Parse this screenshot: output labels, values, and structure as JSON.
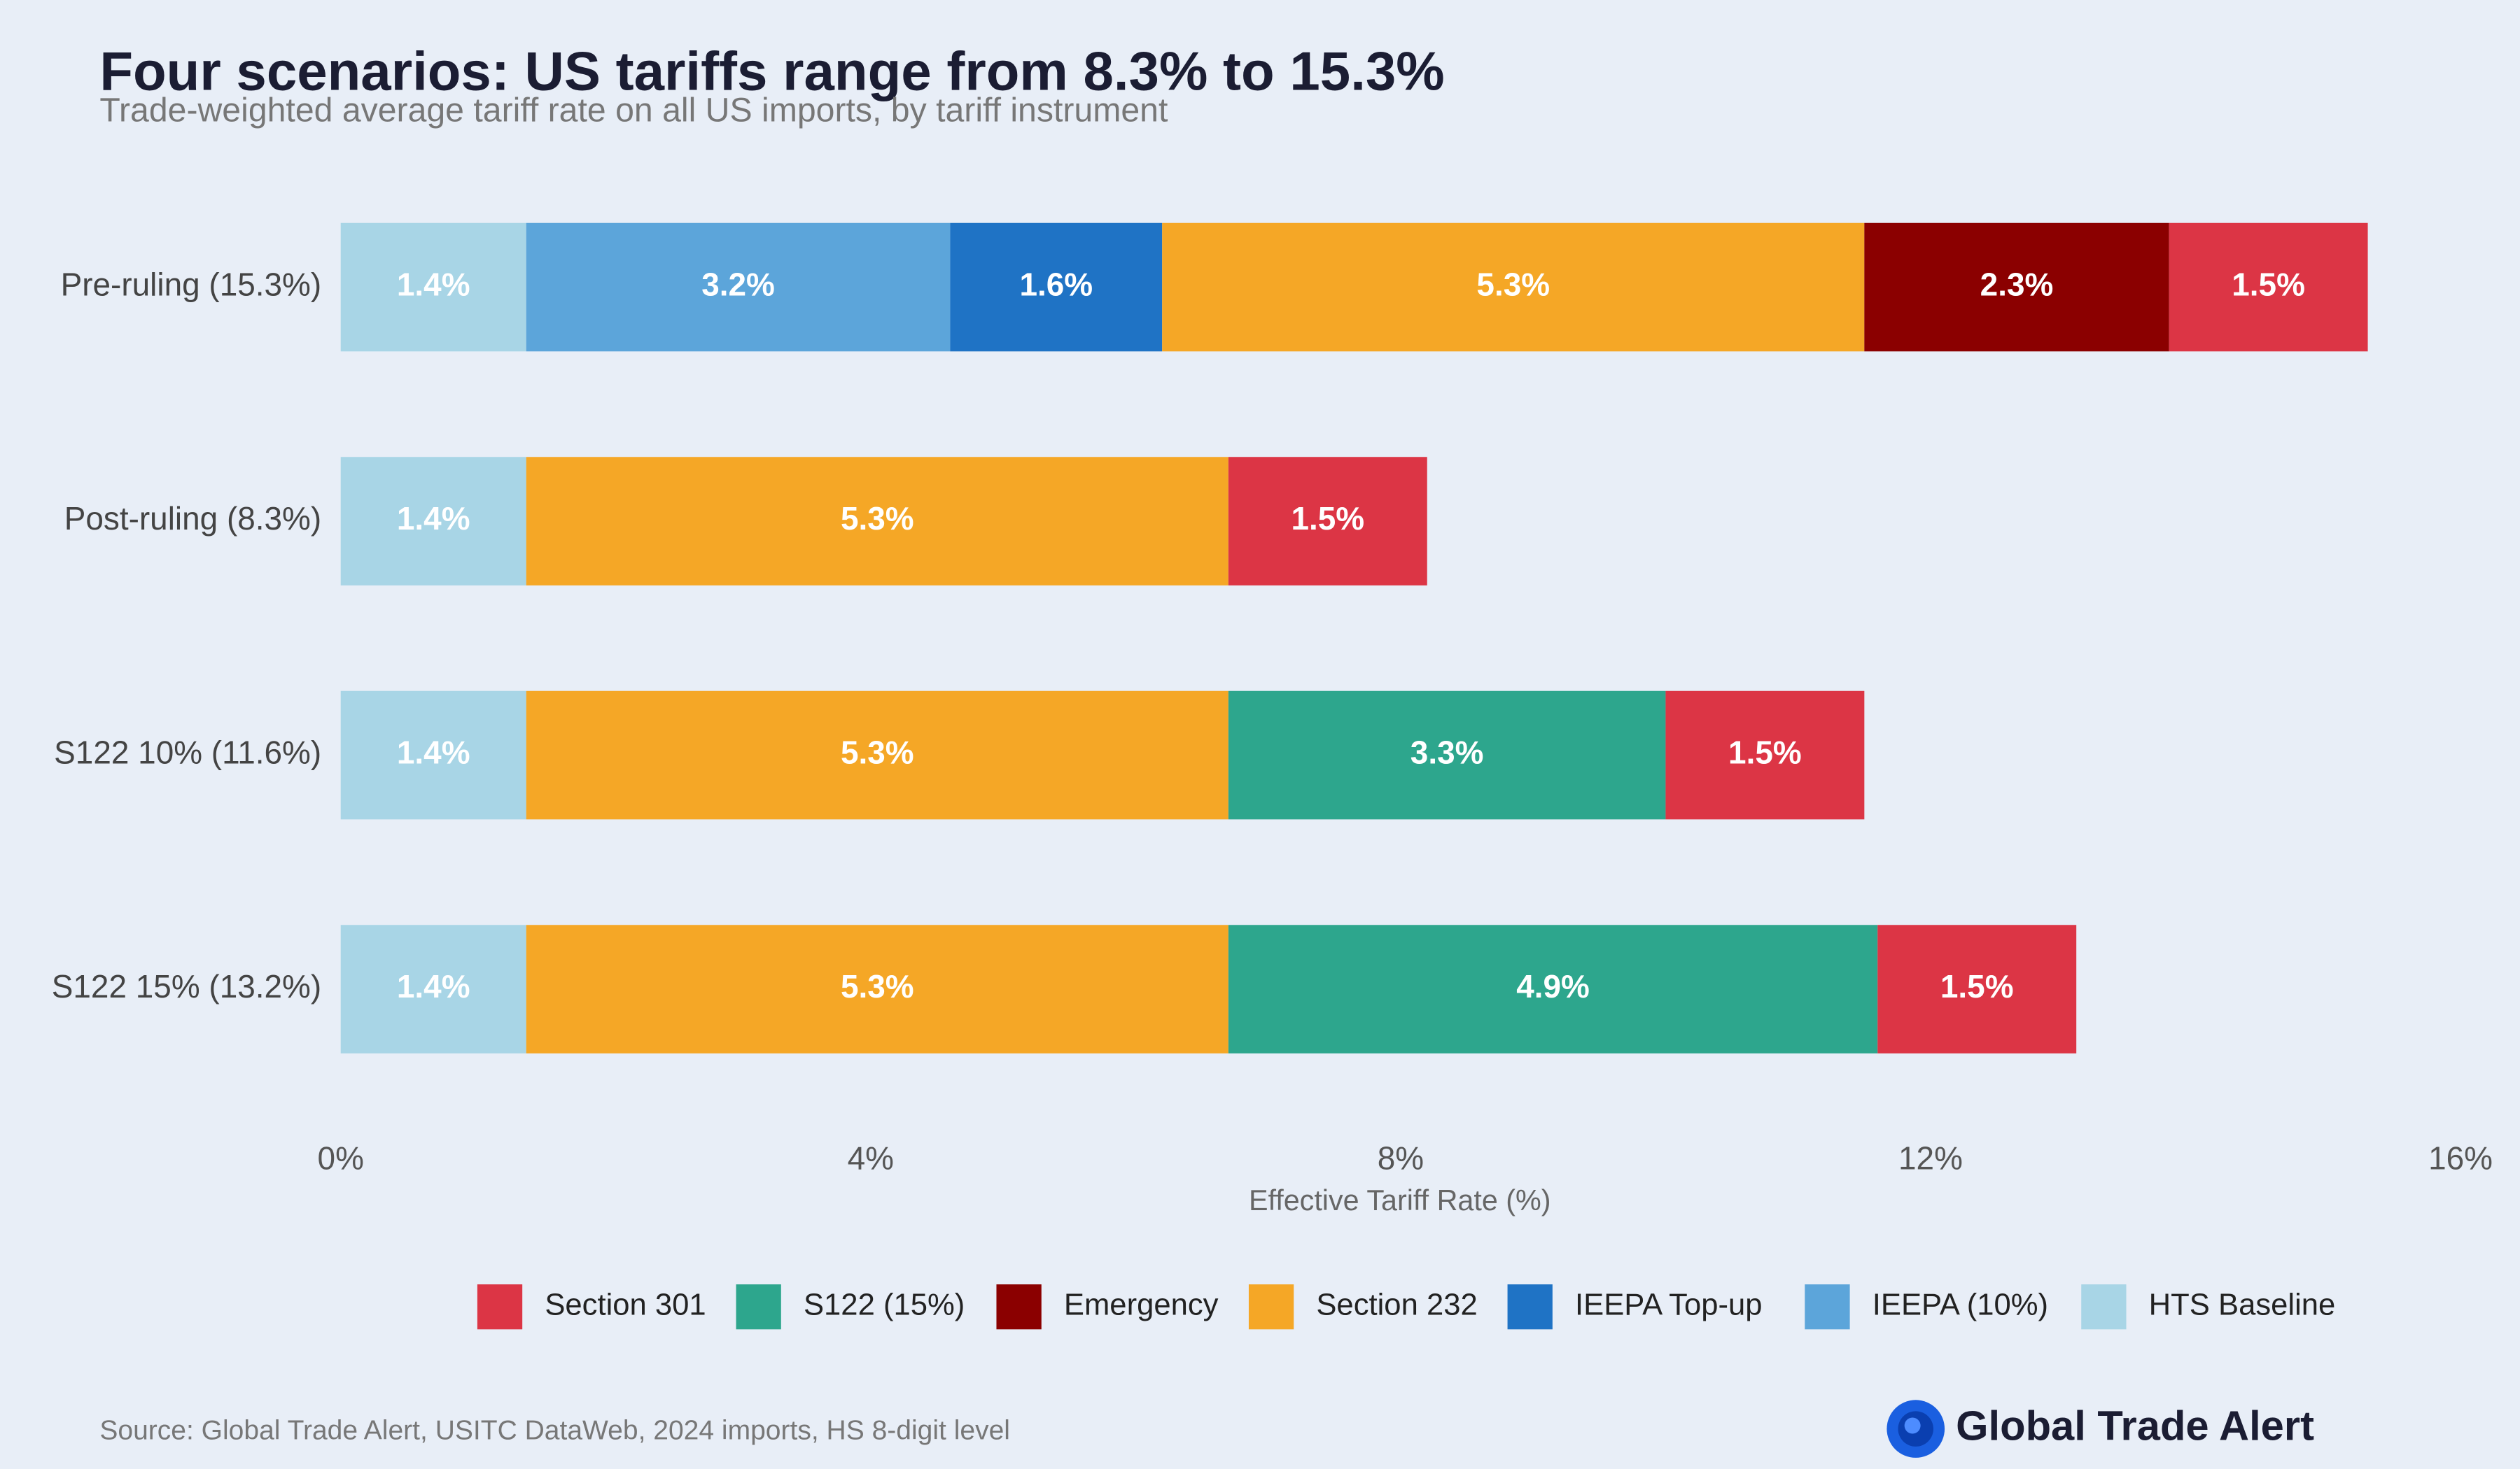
{
  "chart_data": {
    "type": "stacked_barh",
    "title": "Four scenarios: US tariffs range from 8.3% to 15.3%",
    "subtitle": "Trade-weighted average tariff rate on all US imports, by tariff instrument",
    "x_label": "Effective Tariff Rate (%)",
    "source": "Source: Global Trade Alert, USITC DataWeb, 2024 imports, HS 8-digit level",
    "logo": "Global Trade Alert",
    "categories": [
      "Pre-ruling (15.3%)",
      "Post-ruling (8.3%)",
      "S122 10% (11.6%)",
      "S122 15% (13.2%)"
    ],
    "series": [
      {
        "name": "HTS Baseline",
        "color": "#a8d5e6",
        "values": [
          1.4,
          1.4,
          1.4,
          1.4
        ],
        "value_labels": [
          "1.4%",
          "1.4%",
          "1.4%",
          "1.4%"
        ]
      },
      {
        "name": "IEEPA (10%)",
        "color": "#5ca5da",
        "values": [
          3.2,
          null,
          null,
          null
        ],
        "value_labels": [
          "3.2%",
          null,
          null,
          null
        ]
      },
      {
        "name": "IEEPA Top-up",
        "color": "#1f73c5",
        "values": [
          1.6,
          null,
          null,
          null
        ],
        "value_labels": [
          "1.6%",
          null,
          null,
          null
        ]
      },
      {
        "name": "Section 232",
        "color": "#f5a726",
        "values": [
          5.3,
          5.3,
          5.3,
          5.3
        ],
        "value_labels": [
          "5.3%",
          "5.3%",
          "5.3%",
          "5.3%"
        ]
      },
      {
        "name": "Emergency",
        "color": "#8b0000",
        "values": [
          2.3,
          null,
          null,
          null
        ],
        "value_labels": [
          "2.3%",
          null,
          null,
          null
        ]
      },
      {
        "name": "S122 (15%)",
        "color": "#2da68d",
        "values": [
          null,
          null,
          3.3,
          4.9
        ],
        "value_labels": [
          null,
          null,
          "3.3%",
          "4.9%"
        ]
      },
      {
        "name": "Section 301",
        "color": "#dc3545",
        "values": [
          1.5,
          1.5,
          1.5,
          1.5
        ],
        "value_labels": [
          "1.5%",
          "1.5%",
          "1.5%",
          "1.5%"
        ]
      }
    ],
    "xlim": [
      0,
      16
    ],
    "xticks": [
      {
        "value": 0,
        "label": "0%"
      },
      {
        "value": 4,
        "label": "4%"
      },
      {
        "value": 8,
        "label": "8%"
      },
      {
        "value": 12,
        "label": "12%"
      },
      {
        "value": 16,
        "label": "16%"
      }
    ],
    "grid": false,
    "legend": "bottom"
  }
}
